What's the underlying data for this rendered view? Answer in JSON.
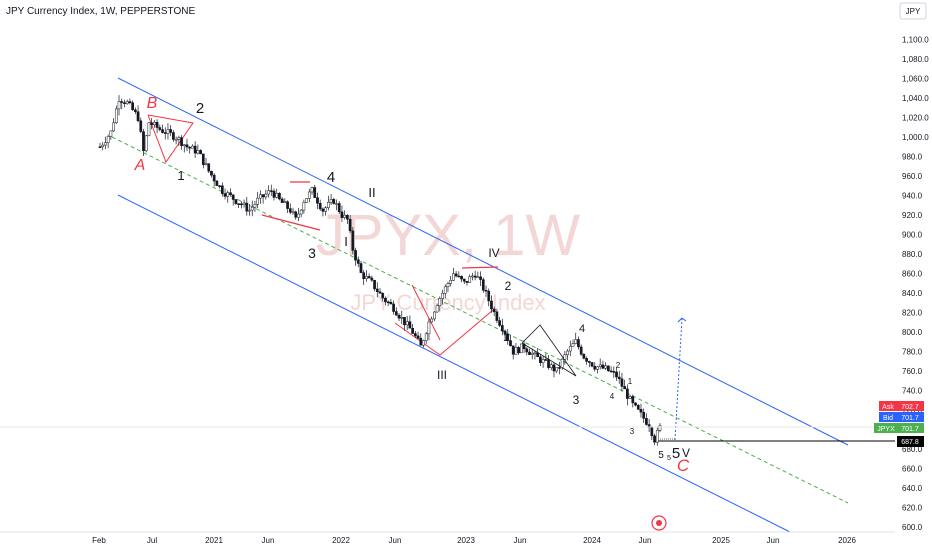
{
  "header": {
    "title": "JPY Currency Index, 1W, PEPPERSTONE"
  },
  "scale_button": "JPY",
  "watermark": {
    "main": "JPYX, 1W",
    "sub": "JPY Currency Index"
  },
  "price_badges": {
    "ask": {
      "label": "Ask",
      "value": "702.7",
      "color": "#f23645"
    },
    "bid": {
      "label": "Bid",
      "value": "701.7",
      "color": "#2962ff"
    },
    "last": {
      "label": "JPYX",
      "value": "701.7",
      "color": "#4caf50"
    },
    "target": {
      "value": "687.8",
      "color": "#000000"
    }
  },
  "chart_data": {
    "type": "candlestick",
    "title": "JPY Currency Index, 1W, PEPPERSTONE",
    "ylim": [
      595,
      1135
    ],
    "y_ticks": [
      600,
      620,
      640,
      660,
      680,
      700,
      720,
      740,
      760,
      780,
      800,
      820,
      840,
      860,
      880,
      900,
      920,
      940,
      960,
      980,
      1000,
      1020,
      1040,
      1060,
      1080,
      1100
    ],
    "x_tick_labels": [
      "Feb",
      "Jul",
      "2021",
      "Jun",
      "2022",
      "Jun",
      "2023",
      "Jun",
      "2024",
      "Jun",
      "2025",
      "Jun",
      "2026"
    ],
    "close_path": [
      {
        "week": 0,
        "close": 990
      },
      {
        "week": 4,
        "close": 1005
      },
      {
        "week": 7,
        "close": 1040
      },
      {
        "week": 10,
        "close": 1035
      },
      {
        "week": 14,
        "close": 1020
      },
      {
        "week": 16,
        "close": 985
      },
      {
        "week": 18,
        "close": 1015
      },
      {
        "week": 22,
        "close": 1008
      },
      {
        "week": 28,
        "close": 1000
      },
      {
        "week": 32,
        "close": 990
      },
      {
        "week": 36,
        "close": 985
      },
      {
        "week": 40,
        "close": 965
      },
      {
        "week": 45,
        "close": 945
      },
      {
        "week": 50,
        "close": 935
      },
      {
        "week": 55,
        "close": 925
      },
      {
        "week": 58,
        "close": 935
      },
      {
        "week": 63,
        "close": 945
      },
      {
        "week": 66,
        "close": 935
      },
      {
        "week": 70,
        "close": 925
      },
      {
        "week": 72,
        "close": 915
      },
      {
        "week": 75,
        "close": 935
      },
      {
        "week": 78,
        "close": 945
      },
      {
        "week": 82,
        "close": 925
      },
      {
        "week": 86,
        "close": 935
      },
      {
        "week": 89,
        "close": 920
      },
      {
        "week": 91,
        "close": 915
      },
      {
        "week": 93,
        "close": 885
      },
      {
        "week": 96,
        "close": 860
      },
      {
        "week": 100,
        "close": 850
      },
      {
        "week": 104,
        "close": 835
      },
      {
        "week": 108,
        "close": 825
      },
      {
        "week": 112,
        "close": 810
      },
      {
        "week": 115,
        "close": 800
      },
      {
        "week": 118,
        "close": 785
      },
      {
        "week": 121,
        "close": 810
      },
      {
        "week": 124,
        "close": 830
      },
      {
        "week": 127,
        "close": 845
      },
      {
        "week": 130,
        "close": 860
      },
      {
        "week": 134,
        "close": 850
      },
      {
        "week": 138,
        "close": 860
      },
      {
        "week": 141,
        "close": 845
      },
      {
        "week": 145,
        "close": 820
      },
      {
        "week": 149,
        "close": 800
      },
      {
        "week": 152,
        "close": 780
      },
      {
        "week": 156,
        "close": 785
      },
      {
        "week": 160,
        "close": 775
      },
      {
        "week": 164,
        "close": 768
      },
      {
        "week": 168,
        "close": 760
      },
      {
        "week": 172,
        "close": 780
      },
      {
        "week": 175,
        "close": 790
      },
      {
        "week": 178,
        "close": 775
      },
      {
        "week": 182,
        "close": 765
      },
      {
        "week": 186,
        "close": 762
      },
      {
        "week": 190,
        "close": 755
      },
      {
        "week": 193,
        "close": 740
      },
      {
        "week": 196,
        "close": 725
      },
      {
        "week": 199,
        "close": 715
      },
      {
        "week": 202,
        "close": 705
      },
      {
        "week": 204,
        "close": 690
      },
      {
        "week": 206,
        "close": 702
      }
    ],
    "overlays": {
      "channel": {
        "color": "#2962ff"
      },
      "midline": {
        "color": "#4caf50"
      },
      "target_level": 687.8,
      "wave_labels": [
        {
          "text": "B",
          "color": "red"
        },
        {
          "text": "A",
          "color": "red"
        },
        {
          "text": "2",
          "color": "black"
        },
        {
          "text": "1",
          "color": "black"
        },
        {
          "text": "4",
          "color": "black"
        },
        {
          "text": "3",
          "color": "black"
        },
        {
          "text": "II",
          "color": "black"
        },
        {
          "text": "I",
          "color": "black"
        },
        {
          "text": "IV",
          "color": "black"
        },
        {
          "text": "III",
          "color": "black"
        },
        {
          "text": "2",
          "color": "black"
        },
        {
          "text": "1",
          "color": "black"
        },
        {
          "text": "4",
          "color": "black"
        },
        {
          "text": "3",
          "color": "black"
        },
        {
          "text": "2",
          "color": "black"
        },
        {
          "text": "1",
          "color": "black"
        },
        {
          "text": "4",
          "color": "black"
        },
        {
          "text": "3",
          "color": "black"
        },
        {
          "text": "5",
          "color": "black"
        },
        {
          "text": "5",
          "color": "black"
        },
        {
          "text": "5",
          "color": "black"
        },
        {
          "text": "V",
          "color": "black"
        },
        {
          "text": "C",
          "color": "red"
        }
      ]
    }
  }
}
